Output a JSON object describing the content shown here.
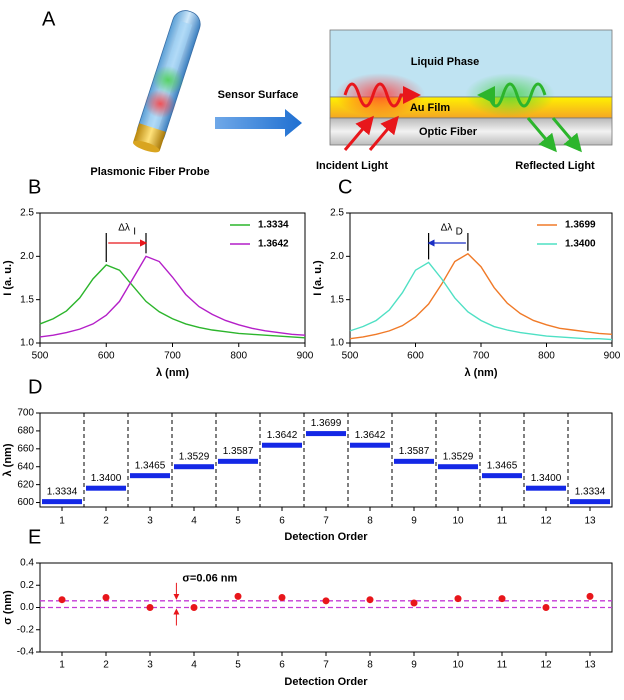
{
  "panel_a": {
    "label": "A",
    "sensor_surface": "Sensor Surface",
    "probe": "Plasmonic Fiber Probe",
    "liquid": "Liquid Phase",
    "film": "Au Film",
    "fiber": "Optic Fiber",
    "incident": "Incident Light",
    "reflected": "Reflected Light"
  },
  "chart_data": [
    {
      "type": "line",
      "panel_label": "B",
      "x_label": "λ (nm)",
      "y_label": "I (a. u.)",
      "annotation": {
        "main": "Δλ",
        "sub": "I",
        "arrow_color": "#e8161b"
      },
      "x": [
        500,
        520,
        540,
        560,
        580,
        600,
        620,
        640,
        660,
        680,
        700,
        720,
        740,
        760,
        780,
        800,
        820,
        840,
        860,
        880,
        900
      ],
      "series": [
        {
          "name": "1.3334",
          "color": "#2cb52c",
          "values": [
            1.22,
            1.28,
            1.37,
            1.52,
            1.74,
            1.9,
            1.84,
            1.66,
            1.48,
            1.36,
            1.28,
            1.22,
            1.18,
            1.15,
            1.13,
            1.11,
            1.1,
            1.09,
            1.08,
            1.07,
            1.06
          ]
        },
        {
          "name": "1.3642",
          "color": "#b41fc8",
          "values": [
            1.07,
            1.09,
            1.12,
            1.16,
            1.22,
            1.32,
            1.48,
            1.74,
            2.0,
            1.94,
            1.76,
            1.56,
            1.42,
            1.33,
            1.26,
            1.21,
            1.17,
            1.14,
            1.12,
            1.1,
            1.09
          ]
        }
      ],
      "xlim": [
        500,
        900
      ],
      "xticks": [
        500,
        600,
        700,
        800,
        900
      ],
      "ylim": [
        1,
        2.5
      ],
      "yticks": [
        {
          "value": 1,
          "label": "1.0"
        },
        1.5,
        {
          "value": 2,
          "label": "2.0"
        },
        2.5
      ],
      "legend": "upper right"
    },
    {
      "type": "line",
      "panel_label": "C",
      "x_label": "λ (nm)",
      "y_label": "I (a. u.)",
      "annotation": {
        "main": "Δλ",
        "sub": "D",
        "arrow_color": "#1a2fc4"
      },
      "x": [
        500,
        520,
        540,
        560,
        580,
        600,
        620,
        640,
        660,
        680,
        700,
        720,
        740,
        760,
        780,
        800,
        820,
        840,
        860,
        880,
        900
      ],
      "series": [
        {
          "name": "1.3699",
          "color": "#f07a28",
          "values": [
            1.05,
            1.07,
            1.1,
            1.14,
            1.2,
            1.3,
            1.45,
            1.68,
            1.94,
            2.03,
            1.88,
            1.64,
            1.46,
            1.34,
            1.26,
            1.21,
            1.17,
            1.15,
            1.13,
            1.11,
            1.1
          ]
        },
        {
          "name": "1.3400",
          "color": "#4fe0c4",
          "values": [
            1.14,
            1.19,
            1.26,
            1.38,
            1.58,
            1.84,
            1.93,
            1.74,
            1.52,
            1.36,
            1.26,
            1.19,
            1.15,
            1.12,
            1.1,
            1.08,
            1.07,
            1.06,
            1.05,
            1.05,
            1.04
          ]
        }
      ],
      "xlim": [
        500,
        900
      ],
      "xticks": [
        500,
        600,
        700,
        800,
        900
      ],
      "ylim": [
        1,
        2.5
      ],
      "yticks": [
        {
          "value": 1,
          "label": "1.0"
        },
        1.5,
        {
          "value": 2,
          "label": "2.0"
        },
        2.5
      ],
      "legend": "upper right"
    },
    {
      "type": "step",
      "panel_label": "D",
      "x_label": "Detection Order",
      "y_label": "λ (nm)",
      "categories": [
        "1",
        "2",
        "3",
        "4",
        "5",
        "6",
        "7",
        "8",
        "9",
        "10",
        "11",
        "12",
        "13"
      ],
      "values": [
        601,
        616,
        630,
        640,
        646,
        664,
        677,
        664,
        646,
        640,
        630,
        616,
        601
      ],
      "point_labels": [
        "1.3334",
        "1.3400",
        "1.3465",
        "1.3529",
        "1.3587",
        "1.3642",
        "1.3699",
        "1.3642",
        "1.3587",
        "1.3529",
        "1.3465",
        "1.3400",
        "1.3334"
      ],
      "color": "#1428e6",
      "label_color": "#e8161b",
      "ylim": [
        595,
        700
      ],
      "yticks": [
        600,
        620,
        640,
        660,
        680,
        700
      ]
    },
    {
      "type": "scatter",
      "panel_label": "E",
      "x_label": "Detection Order",
      "y_label": "σ (nm)",
      "annotation": "σ=0.06 nm",
      "x": [
        1,
        2,
        3,
        4,
        5,
        6,
        7,
        8,
        9,
        10,
        11,
        12,
        13
      ],
      "values": [
        0.07,
        0.09,
        0.0,
        0.0,
        0.1,
        0.09,
        0.06,
        0.07,
        0.04,
        0.08,
        0.08,
        0.0,
        0.1
      ],
      "color": "#e8161b",
      "hlines": [
        0,
        0.06
      ],
      "hline_color": "#c43bd6",
      "xlim": [
        0.5,
        13.5
      ],
      "xticks": [
        1,
        2,
        3,
        4,
        5,
        6,
        7,
        8,
        9,
        10,
        11,
        12,
        13
      ],
      "ylim": [
        -0.4,
        0.4
      ],
      "yticks": [
        -0.4,
        -0.2,
        {
          "value": 0,
          "label": "0.0"
        },
        0.2,
        0.4
      ]
    }
  ]
}
